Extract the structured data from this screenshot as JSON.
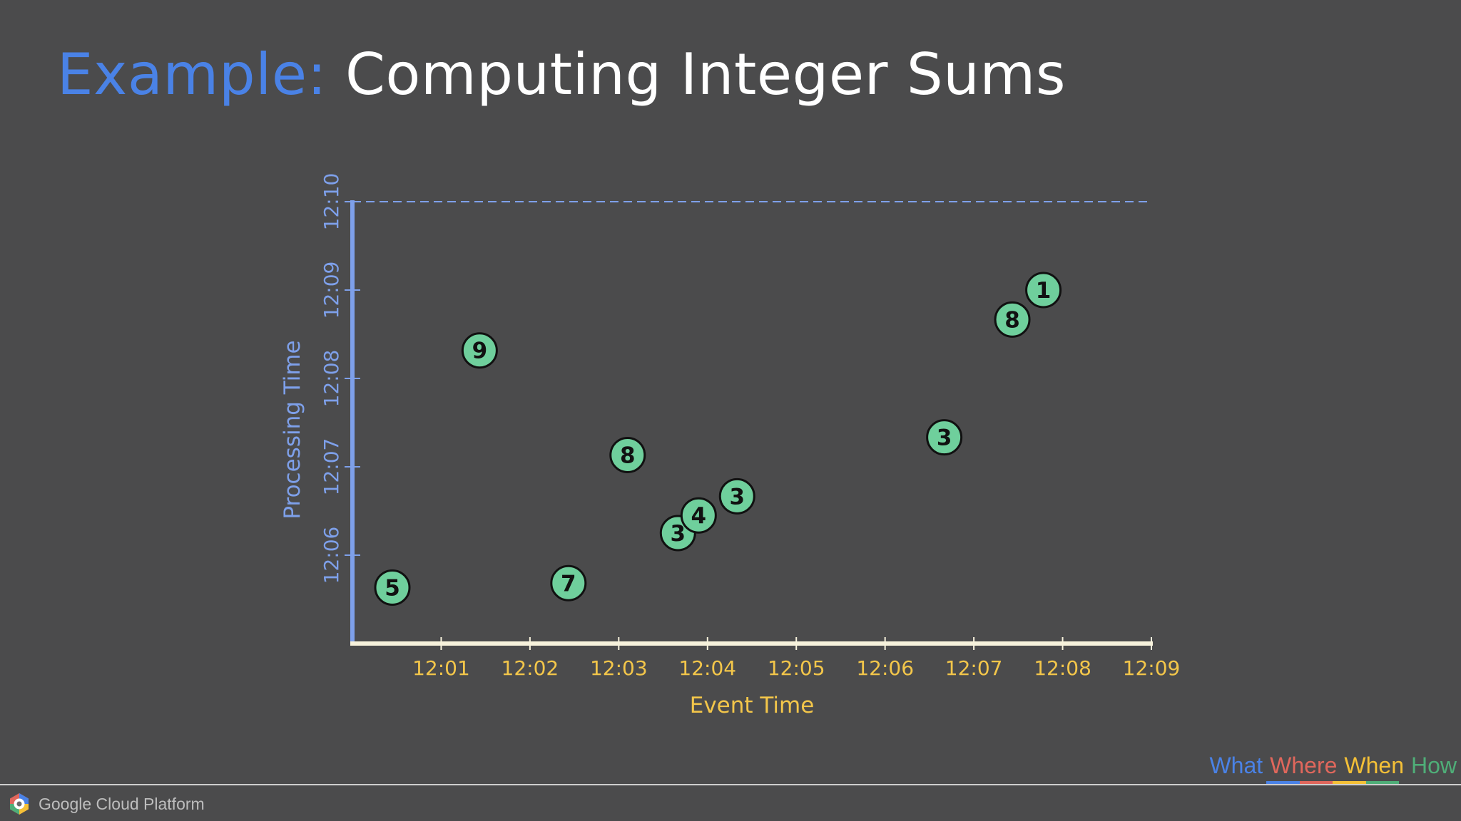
{
  "slide": {
    "title_prefix": "Example:",
    "title_main": "Computing Integer Sums"
  },
  "colors": {
    "background": "#4b4b4c",
    "title_prefix": "#4a82e6",
    "y_axis": "#7ea0ea",
    "x_axis_line": "#f7f2dc",
    "x_axis_text": "#f3c64a",
    "point_fill": "#6fcf9c",
    "point_stroke": "#111111",
    "nav_what": "#4a82e6",
    "nav_where": "#e0675c",
    "nav_when": "#f4c037",
    "nav_how": "#4fae78"
  },
  "chart_data": {
    "type": "scatter",
    "xlabel": "Event Time",
    "ylabel": "Processing Time",
    "x_ticks": [
      "12:01",
      "12:02",
      "12:03",
      "12:04",
      "12:05",
      "12:06",
      "12:07",
      "12:08",
      "12:09"
    ],
    "y_ticks": [
      "12:06",
      "12:07",
      "12:08",
      "12:09",
      "12:10"
    ],
    "xlim": [
      "12:00",
      "12:09"
    ],
    "ylim": [
      "12:05",
      "12:10"
    ],
    "reference_line": {
      "y": "12:10",
      "style": "dashed"
    },
    "points": [
      {
        "x": "12:00:27",
        "y": "12:05:38",
        "label": "5"
      },
      {
        "x": "12:01:26",
        "y": "12:08:19",
        "label": "9"
      },
      {
        "x": "12:02:26",
        "y": "12:05:41",
        "label": "7"
      },
      {
        "x": "12:03:06",
        "y": "12:07:08",
        "label": "8"
      },
      {
        "x": "12:03:40",
        "y": "12:06:15",
        "label": "3"
      },
      {
        "x": "12:03:54",
        "y": "12:06:27",
        "label": "4"
      },
      {
        "x": "12:04:20",
        "y": "12:06:40",
        "label": "3"
      },
      {
        "x": "12:06:40",
        "y": "12:07:20",
        "label": "3"
      },
      {
        "x": "12:07:26",
        "y": "12:08:40",
        "label": "8"
      },
      {
        "x": "12:07:47",
        "y": "12:09:00",
        "label": "1"
      }
    ]
  },
  "nav_legend": {
    "what": "What",
    "where": "Where",
    "when": "When",
    "how": "How"
  },
  "footer": {
    "brand": "Google Cloud Platform"
  }
}
